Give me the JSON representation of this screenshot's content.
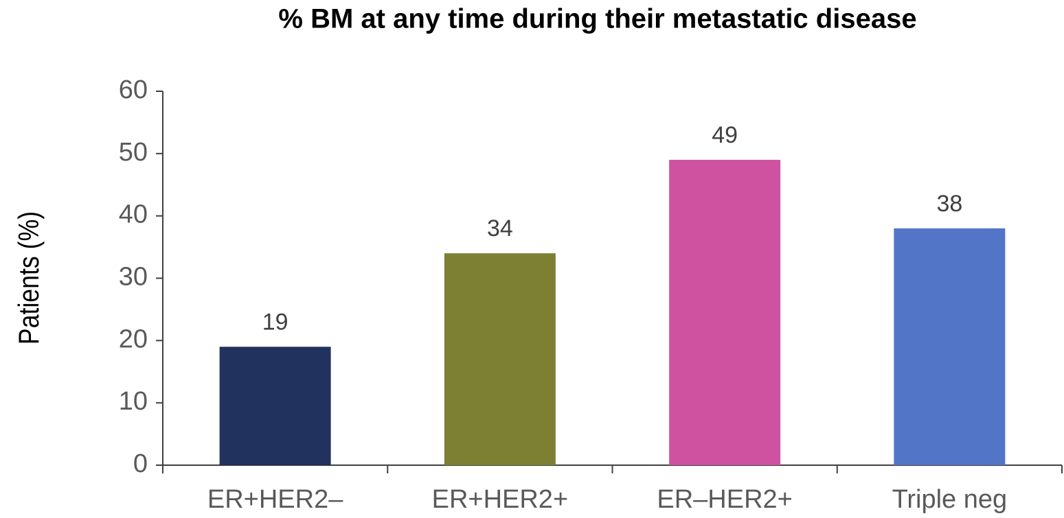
{
  "chart_data": {
    "type": "bar",
    "title": "% BM at any time during their metastatic disease",
    "y_label": "Patients (%)",
    "categories": [
      "ER+HER2–",
      "ER+HER2+",
      "ER–HER2+",
      "Triple neg"
    ],
    "values": [
      19,
      34,
      49,
      38
    ],
    "colors": [
      "#22325e",
      "#7d8033",
      "#cf52a0",
      "#5275c8"
    ],
    "ylim": [
      0,
      60
    ],
    "yticks": [
      0,
      10,
      20,
      30,
      40,
      50,
      60
    ],
    "grid": false
  }
}
